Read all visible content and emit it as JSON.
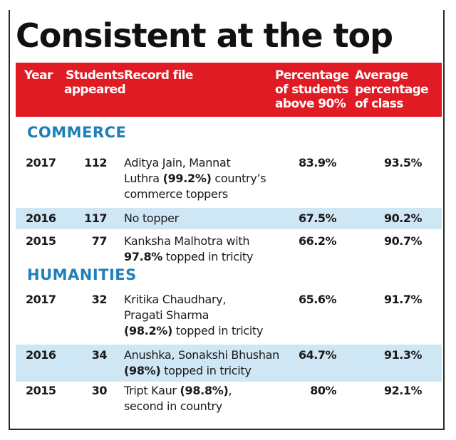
{
  "chart_data": {
    "type": "table",
    "title": "Consistent at the top",
    "columns": [
      "Year",
      "Students appeared",
      "Record file",
      "Percentage of students above 90%",
      "Average percentage of class"
    ],
    "header_lines": {
      "year": "Year",
      "students_1": "Students",
      "students_2": "appeared",
      "record": "Record file",
      "pct_1": "Percentage",
      "pct_2": "of students",
      "pct_3": "above 90%",
      "avg_1": "Average",
      "avg_2": "percentage",
      "avg_3": "of class"
    },
    "sections": [
      {
        "name": "COMMERCE",
        "rows": [
          {
            "year": "2017",
            "students": "112",
            "record_lines": [
              [
                {
                  "t": "Aditya Jain, Mannat",
                  "b": false
                }
              ],
              [
                {
                  "t": "Luthra ",
                  "b": false
                },
                {
                  "t": "(99.2%)",
                  "b": true
                },
                {
                  "t": " country’s",
                  "b": false
                }
              ],
              [
                {
                  "t": "commerce toppers",
                  "b": false
                }
              ]
            ],
            "pct": "83.9%",
            "avg": "93.5%",
            "highlight": false
          },
          {
            "year": "2016",
            "students": "117",
            "record_lines": [
              [
                {
                  "t": "No topper",
                  "b": false
                }
              ]
            ],
            "pct": "67.5%",
            "avg": "90.2%",
            "highlight": true
          },
          {
            "year": "2015",
            "students": "77",
            "record_lines": [
              [
                {
                  "t": "Kanksha Malhotra with",
                  "b": false
                }
              ],
              [
                {
                  "t": "97.8%",
                  "b": true
                },
                {
                  "t": " topped in tricity",
                  "b": false
                }
              ]
            ],
            "pct": "66.2%",
            "avg": "90.7%",
            "highlight": false
          }
        ]
      },
      {
        "name": "HUMANITIES",
        "rows": [
          {
            "year": "2017",
            "students": "32",
            "record_lines": [
              [
                {
                  "t": "Kritika Chaudhary,",
                  "b": false
                }
              ],
              [
                {
                  "t": "Pragati Sharma",
                  "b": false
                }
              ],
              [
                {
                  "t": "(98.2%)",
                  "b": true
                },
                {
                  "t": " topped in tricity",
                  "b": false
                }
              ]
            ],
            "pct": "65.6%",
            "avg": "91.7%",
            "highlight": false
          },
          {
            "year": "2016",
            "students": "34",
            "record_lines": [
              [
                {
                  "t": "Anushka, Sonakshi Bhushan",
                  "b": false
                }
              ],
              [
                {
                  "t": "(98%)",
                  "b": true
                },
                {
                  "t": " topped in tricity",
                  "b": false
                }
              ]
            ],
            "pct": "64.7%",
            "avg": "91.3%",
            "highlight": true
          },
          {
            "year": "2015",
            "students": "30",
            "record_lines": [
              [
                {
                  "t": "Tript Kaur ",
                  "b": false
                },
                {
                  "t": "(98.8%)",
                  "b": true
                },
                {
                  "t": ",",
                  "b": false
                }
              ],
              [
                {
                  "t": "second in country",
                  "b": false
                }
              ]
            ],
            "pct": "80%",
            "avg": "92.1%",
            "highlight": false
          }
        ]
      }
    ]
  },
  "colors": {
    "header_bg": "#e01b24",
    "section_text": "#1f7fb7",
    "highlight_row": "#cfe6f4"
  }
}
